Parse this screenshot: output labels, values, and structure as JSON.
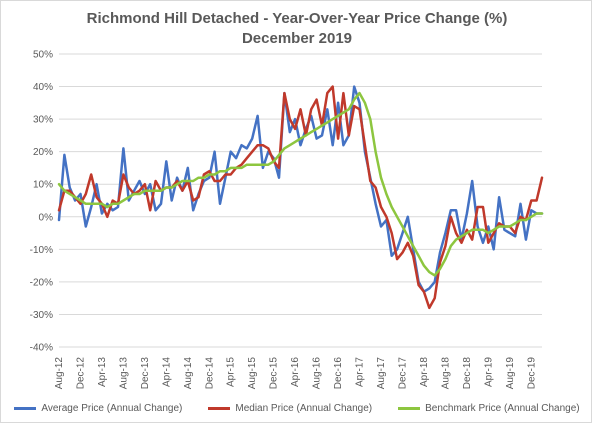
{
  "chart_data": {
    "type": "line",
    "title": "Richmond Hill Detached - Year-Over-Year Price Change (%)",
    "subtitle": "December 2019",
    "ylim": [
      -40,
      50
    ],
    "yticks": [
      "50%",
      "40%",
      "30%",
      "20%",
      "10%",
      "0%",
      "-10%",
      "-20%",
      "-30%",
      "-40%"
    ],
    "ytick_values": [
      50,
      40,
      30,
      20,
      10,
      0,
      -10,
      -20,
      -30,
      -40
    ],
    "xticks": [
      "Aug-12",
      "Dec-12",
      "Apr-13",
      "Aug-13",
      "Dec-13",
      "Apr-14",
      "Aug-14",
      "Dec-14",
      "Apr-15",
      "Aug-15",
      "Dec-15",
      "Apr-16",
      "Aug-16",
      "Dec-16",
      "Apr-17",
      "Aug-17",
      "Dec-17",
      "Apr-18",
      "Aug-18",
      "Dec-18",
      "Apr-19",
      "Aug-19",
      "Dec-19"
    ],
    "grid": true,
    "legend_position": "bottom",
    "series": [
      {
        "name": "Average Price (Annual Change)",
        "color": "#4472c4",
        "values": [
          -1,
          19,
          9,
          5,
          7,
          -3,
          3,
          10,
          1,
          4,
          2,
          3,
          21,
          5,
          8,
          11,
          7,
          10,
          2,
          4,
          17,
          5,
          12,
          8,
          15,
          2,
          7,
          11,
          12,
          20,
          4,
          12,
          20,
          18,
          22,
          21,
          24,
          31,
          15,
          20,
          18,
          12,
          38,
          26,
          30,
          22,
          27,
          31,
          24,
          25,
          33,
          22,
          35,
          22,
          25,
          40,
          35,
          20,
          12,
          4,
          -3,
          -1,
          -12,
          -10,
          -5,
          0,
          -10,
          -20,
          -23,
          -22,
          -20,
          -11,
          -5,
          2,
          2,
          -7,
          1,
          11,
          -3,
          -8,
          -3,
          -10,
          6,
          -4,
          -5,
          -6,
          4,
          -7,
          2,
          1,
          1
        ]
      },
      {
        "name": "Median Price (Annual Change)",
        "color": "#c0392b",
        "values": [
          2,
          8,
          8,
          6,
          4,
          7,
          13,
          6,
          4,
          0,
          5,
          4,
          13,
          9,
          7,
          8,
          10,
          2,
          11,
          8,
          9,
          9,
          11,
          8,
          11,
          5,
          6,
          13,
          14,
          11,
          11,
          13,
          13,
          15,
          16,
          18,
          20,
          22,
          22,
          21,
          17,
          15,
          38,
          30,
          27,
          33,
          25,
          33,
          36,
          28,
          38,
          40,
          24,
          38,
          25,
          34,
          33,
          22,
          11,
          9,
          3,
          0,
          -5,
          -13,
          -11,
          -8,
          -12,
          -21,
          -23,
          -28,
          -25,
          -14,
          -9,
          0,
          -5,
          -8,
          -4,
          -7,
          3,
          3,
          -8,
          -5,
          -2,
          -3,
          -3,
          -5,
          0,
          -1,
          5,
          5,
          12
        ]
      },
      {
        "name": "Benchmark Price (Annual Change)",
        "color": "#8dc63f",
        "values": [
          10,
          8,
          7,
          6,
          5,
          4,
          4,
          4,
          4,
          3,
          4,
          4,
          5,
          6,
          7,
          7,
          8,
          8,
          8,
          8,
          9,
          9,
          10,
          11,
          11,
          11,
          12,
          12,
          13,
          13,
          14,
          14,
          15,
          15,
          15,
          16,
          16,
          16,
          16,
          16,
          17,
          19,
          21,
          22,
          23,
          24,
          25,
          26,
          27,
          28,
          29,
          30,
          31,
          32,
          33,
          36,
          38,
          35,
          30,
          20,
          12,
          7,
          3,
          0,
          -3,
          -6,
          -9,
          -12,
          -15,
          -17,
          -18,
          -16,
          -13,
          -9,
          -7,
          -6,
          -5,
          -4,
          -4,
          -4,
          -5,
          -4,
          -3,
          -3,
          -3,
          -2,
          -1,
          -1,
          0,
          1,
          1
        ]
      }
    ]
  }
}
